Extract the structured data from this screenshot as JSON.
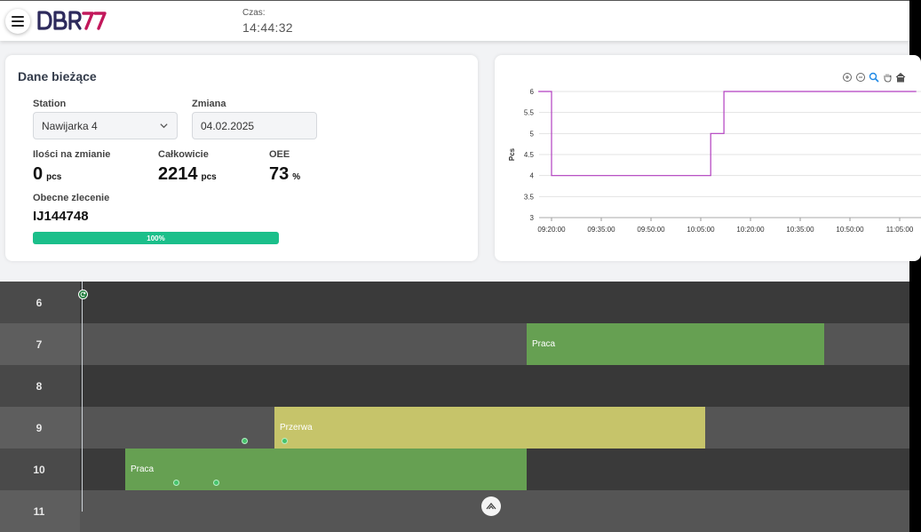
{
  "header": {
    "logo_text": "DBR77",
    "time_label": "Czas:",
    "time_value": "14:44:32"
  },
  "current": {
    "title": "Dane bieżące",
    "station_label": "Station",
    "station_value": "Nawijarka 4",
    "shift_label": "Zmiana",
    "shift_value": "04.02.2025",
    "qty_shift_label": "Ilości na zmianie",
    "qty_shift_value": "0",
    "qty_shift_unit": "pcs",
    "total_label": "Całkowicie",
    "total_value": "2214",
    "total_unit": "pcs",
    "oee_label": "OEE",
    "oee_value": "73",
    "oee_unit": "%",
    "order_label": "Obecne zlecenie",
    "order_value": "IJ144748",
    "progress_value": 100,
    "progress_text": "100%"
  },
  "chart_tools": [
    "zoom-in-icon",
    "zoom-out-icon",
    "zoom-select-icon",
    "pan-hand-icon",
    "home-icon"
  ],
  "chart_data": {
    "type": "line",
    "ylabel": "Pcs",
    "xlabel": "",
    "ylim": [
      3,
      6
    ],
    "yticks": [
      "6",
      "5.5",
      "5",
      "4.5",
      "4",
      "3.5",
      "3"
    ],
    "xticks": [
      "09:20:00",
      "09:35:00",
      "09:50:00",
      "10:05:00",
      "10:20:00",
      "10:35:00",
      "10:50:00",
      "11:05:00"
    ],
    "series": [
      {
        "color": "#b23fc0",
        "points": [
          [
            "09:16:00",
            6
          ],
          [
            "09:20:00",
            6
          ],
          [
            "09:20:00",
            4
          ],
          [
            "10:08:00",
            4
          ],
          [
            "10:08:00",
            5
          ],
          [
            "10:12:00",
            5
          ],
          [
            "10:12:00",
            6
          ],
          [
            "11:10:00",
            6
          ]
        ]
      }
    ]
  },
  "timeline": {
    "rows": [
      {
        "label": "6",
        "bars": []
      },
      {
        "label": "7",
        "bars": [
          {
            "text": "Praca",
            "color": "#66a052"
          }
        ]
      },
      {
        "label": "8",
        "bars": []
      },
      {
        "label": "9",
        "bars": [
          {
            "text": "Przerwa",
            "color": "#c6c46a"
          }
        ]
      },
      {
        "label": "10",
        "bars": [
          {
            "text": "Praca",
            "color": "#66a052"
          }
        ]
      },
      {
        "label": "11",
        "bars": []
      }
    ]
  }
}
